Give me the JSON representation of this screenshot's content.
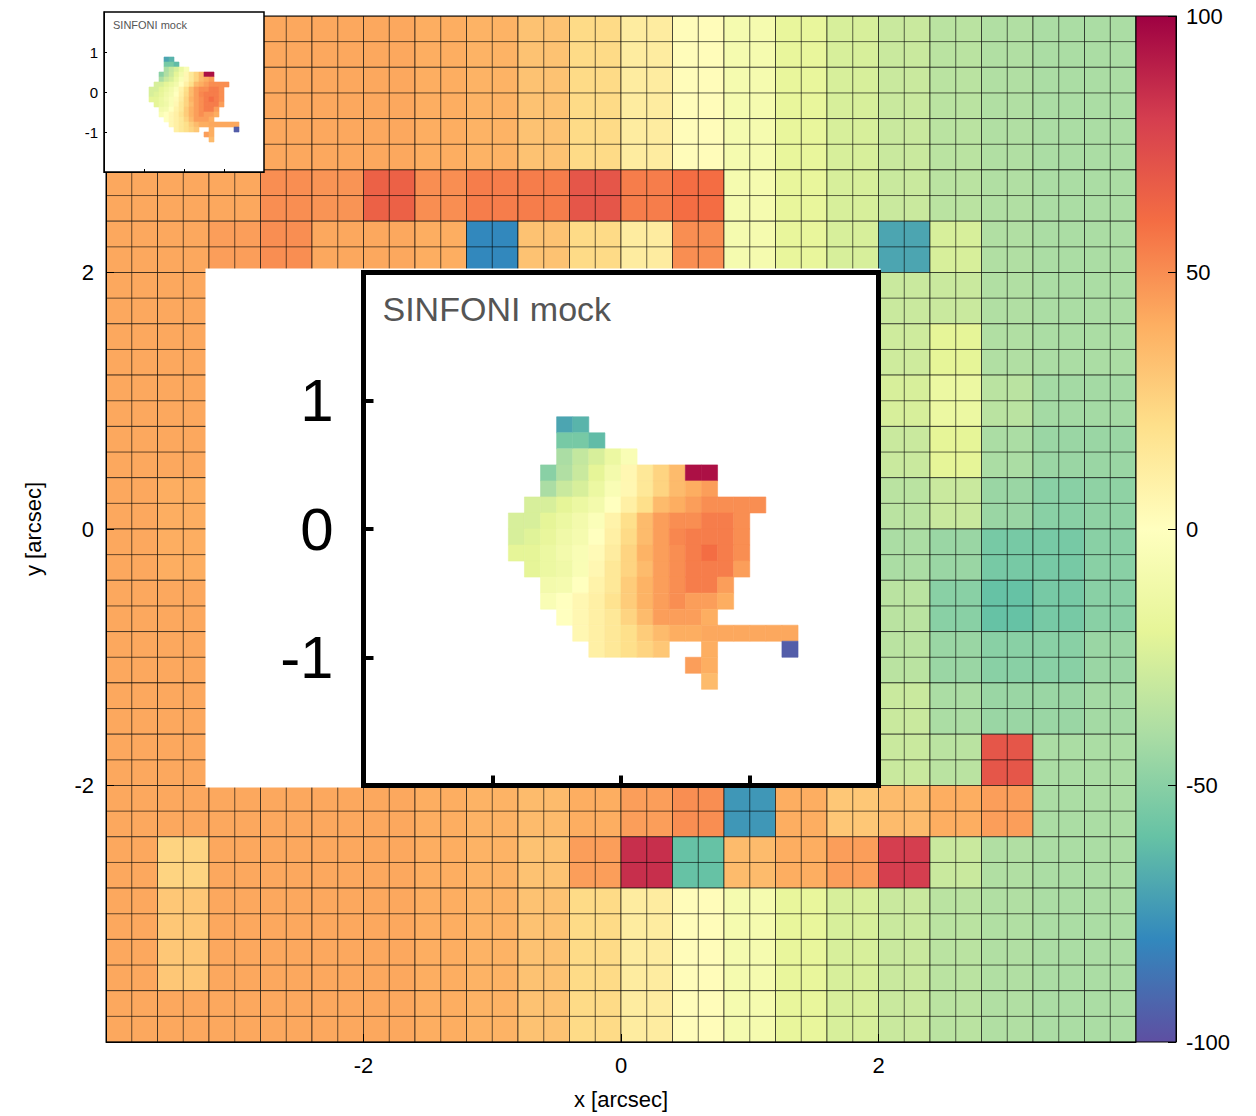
{
  "chart_data": [
    {
      "type": "heatmap",
      "x_label": "x [arcsec]",
      "y_label": "y [arcsec]",
      "xlim": [
        -4,
        4
      ],
      "ylim": [
        -4,
        4
      ],
      "xticks": [
        -2,
        0,
        2
      ],
      "yticks": [
        -2,
        0,
        2
      ],
      "x": [
        -3.8,
        -3.4,
        -3.0,
        -2.6,
        -2.2,
        -1.8,
        -1.4,
        -1.0,
        -0.6,
        -0.2,
        0.2,
        0.6,
        1.0,
        1.4,
        1.8,
        2.2,
        2.6,
        3.0,
        3.4,
        3.8
      ],
      "y": [
        3.8,
        3.4,
        3.0,
        2.6,
        2.2,
        1.8,
        1.4,
        1.0,
        0.6,
        0.2,
        -0.2,
        -0.6,
        -1.0,
        -1.4,
        -1.8,
        -2.2,
        -2.6,
        -3.0,
        -3.4,
        -3.8
      ],
      "values": [
        [
          42,
          42,
          42,
          42,
          42,
          42,
          40,
          38,
          32,
          22,
          12,
          2,
          -8,
          -18,
          -25,
          -30,
          -35,
          -38,
          -40,
          -40
        ],
        [
          42,
          42,
          42,
          42,
          42,
          42,
          40,
          38,
          32,
          22,
          12,
          2,
          -8,
          -18,
          -25,
          -30,
          -35,
          -38,
          -40,
          -40
        ],
        [
          42,
          42,
          42,
          42,
          42,
          42,
          40,
          38,
          32,
          22,
          12,
          2,
          -8,
          -18,
          -25,
          -30,
          -35,
          -38,
          -40,
          -40
        ],
        [
          42,
          42,
          42,
          50,
          48,
          65,
          50,
          55,
          55,
          70,
          55,
          60,
          -8,
          -18,
          -25,
          -30,
          -35,
          -38,
          -40,
          -40
        ],
        [
          42,
          42,
          45,
          50,
          42,
          42,
          40,
          -80,
          32,
          22,
          12,
          50,
          -8,
          -18,
          -25,
          -70,
          -25,
          -38,
          -40,
          -40
        ],
        [
          42,
          42,
          null,
          null,
          null,
          null,
          null,
          null,
          null,
          null,
          null,
          null,
          null,
          null,
          null,
          -30,
          -30,
          -38,
          -40,
          -40
        ],
        [
          42,
          42,
          null,
          null,
          null,
          null,
          null,
          null,
          null,
          null,
          null,
          null,
          null,
          null,
          null,
          -28,
          -20,
          -38,
          -40,
          -40
        ],
        [
          42,
          42,
          null,
          null,
          null,
          null,
          null,
          null,
          null,
          null,
          null,
          null,
          null,
          null,
          null,
          -25,
          -15,
          -35,
          -42,
          -42
        ],
        [
          42,
          42,
          null,
          null,
          null,
          null,
          null,
          null,
          null,
          null,
          null,
          null,
          null,
          null,
          null,
          -30,
          -20,
          -40,
          -45,
          -45
        ],
        [
          42,
          40,
          null,
          null,
          null,
          null,
          null,
          null,
          null,
          null,
          null,
          null,
          null,
          null,
          null,
          -35,
          -30,
          -45,
          -50,
          -48
        ],
        [
          42,
          40,
          null,
          null,
          null,
          null,
          null,
          null,
          null,
          null,
          null,
          null,
          null,
          null,
          null,
          -40,
          -45,
          -55,
          -55,
          -50
        ],
        [
          42,
          42,
          null,
          null,
          null,
          null,
          null,
          null,
          null,
          null,
          null,
          null,
          null,
          null,
          null,
          -35,
          -50,
          -60,
          -55,
          -50
        ],
        [
          42,
          42,
          null,
          null,
          null,
          null,
          null,
          null,
          null,
          null,
          null,
          null,
          null,
          null,
          null,
          -35,
          -45,
          -50,
          -50,
          -45
        ],
        [
          42,
          42,
          null,
          null,
          null,
          null,
          null,
          null,
          null,
          null,
          null,
          null,
          null,
          null,
          null,
          -30,
          -40,
          -45,
          -45,
          -42
        ],
        [
          42,
          42,
          null,
          null,
          null,
          null,
          null,
          null,
          null,
          null,
          null,
          null,
          null,
          null,
          null,
          -30,
          -35,
          70,
          -40,
          -40
        ],
        [
          42,
          42,
          42,
          42,
          42,
          42,
          40,
          38,
          35,
          40,
          45,
          50,
          -75,
          40,
          30,
          35,
          40,
          45,
          -40,
          -40
        ],
        [
          42,
          25,
          42,
          42,
          42,
          42,
          40,
          38,
          32,
          45,
          85,
          -60,
          35,
          40,
          45,
          80,
          -30,
          -38,
          -40,
          -40
        ],
        [
          42,
          30,
          42,
          42,
          42,
          42,
          40,
          38,
          32,
          22,
          12,
          2,
          -8,
          -18,
          -25,
          -30,
          -35,
          -38,
          -40,
          -40
        ],
        [
          42,
          30,
          42,
          42,
          42,
          42,
          40,
          38,
          32,
          22,
          12,
          2,
          -8,
          -18,
          -25,
          -30,
          -35,
          -38,
          -40,
          -40
        ],
        [
          42,
          42,
          42,
          42,
          42,
          42,
          40,
          38,
          32,
          22,
          12,
          2,
          -8,
          -18,
          -25,
          -30,
          -35,
          -38,
          -40,
          -40
        ]
      ],
      "colorbar": {
        "range": [
          -100,
          100
        ],
        "ticks": [
          -100,
          -50,
          0,
          50,
          100
        ]
      }
    },
    {
      "type": "heatmap",
      "title": "SINFONI mock",
      "xlim": [
        -2,
        2
      ],
      "ylim": [
        -2,
        2
      ],
      "xticks": [
        -1,
        0,
        1
      ],
      "yticks": [
        -1,
        0,
        1
      ],
      "tick_labels": "y",
      "x": [
        -0.8125,
        -0.6875,
        -0.5625,
        -0.4375,
        -0.3125,
        -0.1875,
        -0.0625,
        0.0625,
        0.1875,
        0.3125,
        0.4375,
        0.5625,
        0.6875,
        0.8125,
        0.9375,
        1.0625,
        1.1875,
        1.3125,
        1.4375
      ],
      "y": [
        0.8125,
        0.6875,
        0.5625,
        0.4375,
        0.3125,
        0.1875,
        0.0625,
        -0.0625,
        -0.1875,
        -0.3125,
        -0.4375,
        -0.5625,
        -0.6875,
        -0.8125,
        -0.9375,
        -1.0625,
        -1.1875
      ],
      "values": [
        [
          null,
          null,
          null,
          -70,
          -65,
          null,
          null,
          null,
          null,
          null,
          null,
          null,
          null,
          null,
          null,
          null,
          null,
          null,
          null
        ],
        [
          null,
          null,
          null,
          -55,
          -55,
          -62,
          null,
          null,
          null,
          null,
          null,
          null,
          null,
          null,
          null,
          null,
          null,
          null,
          null
        ],
        [
          null,
          null,
          null,
          -40,
          -32,
          -25,
          -15,
          -5,
          null,
          null,
          null,
          null,
          null,
          null,
          null,
          null,
          null,
          null,
          null
        ],
        [
          null,
          null,
          -50,
          -38,
          -30,
          -20,
          -10,
          5,
          15,
          25,
          35,
          95,
          95,
          null,
          null,
          null,
          null,
          null,
          null
        ],
        [
          null,
          null,
          -40,
          -30,
          -25,
          -15,
          -5,
          5,
          15,
          25,
          35,
          40,
          45,
          null,
          null,
          null,
          null,
          null,
          null
        ],
        [
          null,
          -25,
          -25,
          -20,
          -15,
          -10,
          0,
          10,
          20,
          35,
          40,
          45,
          50,
          50,
          50,
          50,
          null,
          null,
          null
        ],
        [
          -25,
          -25,
          -20,
          -15,
          -10,
          -3,
          8,
          20,
          35,
          45,
          50,
          50,
          55,
          55,
          50,
          null,
          null,
          null,
          null
        ],
        [
          -25,
          -22,
          -18,
          -12,
          -8,
          0,
          10,
          22,
          35,
          45,
          52,
          55,
          55,
          55,
          50,
          null,
          null,
          null,
          null
        ],
        [
          -20,
          -20,
          -15,
          -10,
          -5,
          3,
          12,
          25,
          38,
          45,
          50,
          55,
          60,
          55,
          50,
          null,
          null,
          null,
          null
        ],
        [
          null,
          -20,
          -15,
          -12,
          -5,
          5,
          15,
          25,
          35,
          45,
          50,
          55,
          55,
          55,
          45,
          null,
          null,
          null,
          null
        ],
        [
          null,
          null,
          -10,
          -8,
          0,
          8,
          15,
          28,
          38,
          45,
          50,
          55,
          55,
          45,
          null,
          null,
          null,
          null,
          null
        ],
        [
          null,
          null,
          -5,
          0,
          5,
          10,
          18,
          28,
          38,
          45,
          50,
          45,
          45,
          40,
          null,
          null,
          null,
          null,
          null
        ],
        [
          null,
          null,
          null,
          0,
          5,
          10,
          15,
          25,
          35,
          45,
          45,
          45,
          40,
          null,
          null,
          null,
          null,
          null,
          null
        ],
        [
          null,
          null,
          null,
          null,
          5,
          10,
          15,
          20,
          28,
          35,
          40,
          40,
          42,
          42,
          42,
          42,
          42,
          42,
          null
        ],
        [
          null,
          null,
          null,
          null,
          null,
          10,
          15,
          20,
          25,
          30,
          null,
          null,
          40,
          null,
          null,
          null,
          null,
          -95,
          null
        ],
        [
          null,
          null,
          null,
          null,
          null,
          null,
          null,
          null,
          null,
          null,
          null,
          45,
          40,
          null,
          null,
          null,
          null,
          null,
          null
        ],
        [
          null,
          null,
          null,
          null,
          null,
          null,
          null,
          null,
          null,
          null,
          null,
          null,
          35,
          null,
          null,
          null,
          null,
          null,
          null
        ]
      ]
    },
    {
      "type": "heatmap",
      "title": "SINFONI mock",
      "xlim": [
        -2,
        2
      ],
      "ylim": [
        -2,
        2
      ],
      "xticks": [
        -1,
        0,
        1
      ],
      "yticks": [
        -1,
        0,
        1
      ],
      "tick_labels": "y",
      "x": [
        -0.8125,
        -0.6875,
        -0.5625,
        -0.4375,
        -0.3125,
        -0.1875,
        -0.0625,
        0.0625,
        0.1875,
        0.3125,
        0.4375,
        0.5625,
        0.6875,
        0.8125,
        0.9375,
        1.0625,
        1.1875,
        1.3125,
        1.4375
      ],
      "y": [
        0.8125,
        0.6875,
        0.5625,
        0.4375,
        0.3125,
        0.1875,
        0.0625,
        -0.0625,
        -0.1875,
        -0.3125,
        -0.4375,
        -0.5625,
        -0.6875,
        -0.8125,
        -0.9375,
        -1.0625,
        -1.1875
      ],
      "values": [
        [
          null,
          null,
          null,
          -70,
          -65,
          null,
          null,
          null,
          null,
          null,
          null,
          null,
          null,
          null,
          null,
          null,
          null,
          null,
          null
        ],
        [
          null,
          null,
          null,
          -55,
          -55,
          -62,
          null,
          null,
          null,
          null,
          null,
          null,
          null,
          null,
          null,
          null,
          null,
          null,
          null
        ],
        [
          null,
          null,
          null,
          -40,
          -32,
          -25,
          -15,
          -5,
          null,
          null,
          null,
          null,
          null,
          null,
          null,
          null,
          null,
          null,
          null
        ],
        [
          null,
          null,
          -50,
          -38,
          -30,
          -20,
          -10,
          5,
          15,
          25,
          35,
          95,
          95,
          null,
          null,
          null,
          null,
          null,
          null
        ],
        [
          null,
          null,
          -40,
          -30,
          -25,
          -15,
          -5,
          5,
          15,
          25,
          35,
          40,
          45,
          null,
          null,
          null,
          null,
          null,
          null
        ],
        [
          null,
          -25,
          -25,
          -20,
          -15,
          -10,
          0,
          10,
          20,
          35,
          40,
          45,
          50,
          50,
          50,
          50,
          null,
          null,
          null
        ],
        [
          -25,
          -25,
          -20,
          -15,
          -10,
          -3,
          8,
          20,
          35,
          45,
          50,
          50,
          55,
          55,
          50,
          null,
          null,
          null,
          null
        ],
        [
          -25,
          -22,
          -18,
          -12,
          -8,
          0,
          10,
          22,
          35,
          45,
          52,
          55,
          55,
          55,
          50,
          null,
          null,
          null,
          null
        ],
        [
          -20,
          -20,
          -15,
          -10,
          -5,
          3,
          12,
          25,
          38,
          45,
          50,
          55,
          60,
          55,
          50,
          null,
          null,
          null,
          null
        ],
        [
          null,
          -20,
          -15,
          -12,
          -5,
          5,
          15,
          25,
          35,
          45,
          50,
          55,
          55,
          55,
          45,
          null,
          null,
          null,
          null
        ],
        [
          null,
          null,
          -10,
          -8,
          0,
          8,
          15,
          28,
          38,
          45,
          50,
          55,
          55,
          45,
          null,
          null,
          null,
          null,
          null
        ],
        [
          null,
          null,
          -5,
          0,
          5,
          10,
          18,
          28,
          38,
          45,
          50,
          45,
          45,
          40,
          null,
          null,
          null,
          null,
          null
        ],
        [
          null,
          null,
          null,
          0,
          5,
          10,
          15,
          25,
          35,
          45,
          45,
          45,
          40,
          null,
          null,
          null,
          null,
          null,
          null
        ],
        [
          null,
          null,
          null,
          null,
          5,
          10,
          15,
          20,
          28,
          35,
          40,
          40,
          42,
          42,
          42,
          42,
          42,
          42,
          null
        ],
        [
          null,
          null,
          null,
          null,
          null,
          10,
          15,
          20,
          25,
          30,
          null,
          null,
          40,
          null,
          null,
          null,
          null,
          -95,
          null
        ],
        [
          null,
          null,
          null,
          null,
          null,
          null,
          null,
          null,
          null,
          null,
          null,
          45,
          40,
          null,
          null,
          null,
          null,
          null,
          null
        ],
        [
          null,
          null,
          null,
          null,
          null,
          null,
          null,
          null,
          null,
          null,
          null,
          null,
          35,
          null,
          null,
          null,
          null,
          null,
          null
        ]
      ]
    }
  ]
}
